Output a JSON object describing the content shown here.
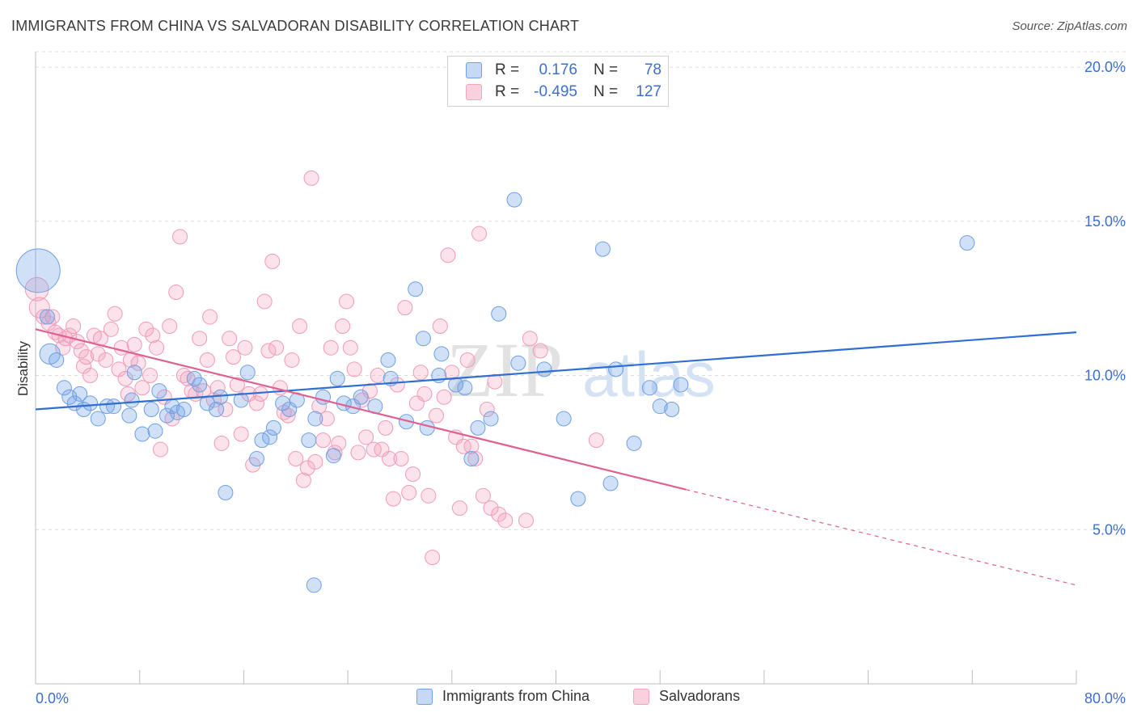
{
  "title": "IMMIGRANTS FROM CHINA VS SALVADORAN DISABILITY CORRELATION CHART",
  "source": "Source: ZipAtlas.com",
  "watermark": {
    "zip": "ZIP",
    "atlas": "atlas"
  },
  "legend_top": {
    "rows": [
      {
        "r_label": "R =",
        "r_value": "0.176",
        "n_label": "N =",
        "n_value": "78",
        "color": "#6fa0e8"
      },
      {
        "r_label": "R =",
        "r_value": "-0.495",
        "n_label": "N =",
        "n_value": "127",
        "color": "#f3a5c0"
      }
    ]
  },
  "legend_bottom": {
    "china": "Immigrants from China",
    "salvadoran": "Salvadorans"
  },
  "chart_data": {
    "type": "scatter",
    "title": "IMMIGRANTS FROM CHINA VS SALVADORAN DISABILITY CORRELATION CHART",
    "xlabel": "",
    "ylabel": "Disability",
    "xlim": [
      0,
      80
    ],
    "ylim": [
      0,
      20.5
    ],
    "x_tick_labels": [
      "0.0%",
      "80.0%"
    ],
    "y_ticks": [
      5,
      10,
      15,
      20
    ],
    "y_tick_labels": [
      "5.0%",
      "10.0%",
      "15.0%",
      "20.0%"
    ],
    "grid": true,
    "colors": {
      "china": "#6fa0e8",
      "china_line": "#2f6fd1",
      "salvadoran": "#f3a5c0",
      "salvadoran_line": "#e0608f"
    },
    "series": [
      {
        "name": "Immigrants from China",
        "trend": {
          "x0": 0,
          "y0": 8.9,
          "x1": 80,
          "y1": 11.4
        },
        "points": [
          [
            0.2,
            13.4,
            3
          ],
          [
            0.9,
            11.9,
            1
          ],
          [
            1.1,
            10.7,
            1.4
          ],
          [
            1.6,
            10.5,
            1
          ],
          [
            2.2,
            9.6,
            1
          ],
          [
            2.6,
            9.3,
            1
          ],
          [
            3.0,
            9.1,
            1
          ],
          [
            3.4,
            9.4,
            1
          ],
          [
            3.7,
            8.9,
            1
          ],
          [
            4.2,
            9.1,
            1
          ],
          [
            4.8,
            8.6,
            1
          ],
          [
            5.5,
            9.0,
            1
          ],
          [
            6.0,
            9.0,
            1
          ],
          [
            7.2,
            8.7,
            1
          ],
          [
            7.4,
            9.2,
            1
          ],
          [
            7.6,
            10.1,
            1
          ],
          [
            8.2,
            8.1,
            1
          ],
          [
            8.9,
            8.9,
            1
          ],
          [
            9.2,
            8.2,
            1
          ],
          [
            9.5,
            9.5,
            1
          ],
          [
            10.1,
            8.7,
            1
          ],
          [
            10.5,
            9.0,
            1
          ],
          [
            10.9,
            8.8,
            1
          ],
          [
            11.4,
            8.9,
            1
          ],
          [
            12.2,
            9.9,
            1
          ],
          [
            12.6,
            9.7,
            1
          ],
          [
            13.2,
            9.1,
            1
          ],
          [
            13.9,
            8.9,
            1
          ],
          [
            14.2,
            9.3,
            1
          ],
          [
            14.6,
            6.2,
            1
          ],
          [
            15.8,
            9.2,
            1
          ],
          [
            16.3,
            10.1,
            1
          ],
          [
            17.0,
            7.3,
            1
          ],
          [
            17.4,
            7.9,
            1
          ],
          [
            18.0,
            8.0,
            1
          ],
          [
            18.3,
            8.3,
            1
          ],
          [
            19.0,
            9.1,
            1
          ],
          [
            19.5,
            8.9,
            1
          ],
          [
            20.1,
            9.2,
            1
          ],
          [
            21.0,
            7.9,
            1
          ],
          [
            21.5,
            8.6,
            1
          ],
          [
            22.1,
            9.3,
            1
          ],
          [
            22.9,
            7.4,
            1
          ],
          [
            23.2,
            9.9,
            1
          ],
          [
            23.7,
            9.1,
            1
          ],
          [
            24.4,
            9.0,
            1
          ],
          [
            25.0,
            9.3,
            1
          ],
          [
            26.1,
            9.0,
            1
          ],
          [
            27.1,
            10.5,
            1
          ],
          [
            27.3,
            9.9,
            1
          ],
          [
            28.5,
            8.5,
            1
          ],
          [
            29.2,
            12.8,
            1
          ],
          [
            29.8,
            11.2,
            1
          ],
          [
            30.1,
            8.3,
            1
          ],
          [
            31.0,
            10.0,
            1
          ],
          [
            31.2,
            10.7,
            1
          ],
          [
            32.3,
            9.7,
            1
          ],
          [
            33.0,
            9.6,
            1
          ],
          [
            33.5,
            7.3,
            1
          ],
          [
            34.0,
            8.3,
            1
          ],
          [
            35.0,
            8.6,
            1
          ],
          [
            35.6,
            12.0,
            1
          ],
          [
            36.8,
            15.7,
            1
          ],
          [
            37.1,
            10.4,
            1
          ],
          [
            38.2,
            19.8,
            1
          ],
          [
            39.1,
            10.2,
            1
          ],
          [
            40.6,
            8.6,
            1
          ],
          [
            41.7,
            6.0,
            1
          ],
          [
            43.6,
            14.1,
            1
          ],
          [
            44.2,
            6.5,
            1
          ],
          [
            44.6,
            10.2,
            1
          ],
          [
            46.0,
            7.8,
            1
          ],
          [
            47.2,
            9.6,
            1
          ],
          [
            48.0,
            9.0,
            1
          ],
          [
            48.9,
            8.9,
            1
          ],
          [
            49.6,
            9.7,
            1
          ],
          [
            71.6,
            14.3,
            1
          ],
          [
            21.4,
            3.2,
            1
          ]
        ]
      },
      {
        "name": "Salvadorans",
        "trend": {
          "x0": 0,
          "y0": 11.5,
          "x1": 50,
          "y1": 6.3,
          "dash_to_x": 80,
          "dash_to_y": 3.2
        },
        "points": [
          [
            0.1,
            12.8,
            1.6
          ],
          [
            0.3,
            12.2,
            1.4
          ],
          [
            0.6,
            11.9,
            1
          ],
          [
            1.0,
            11.7,
            1
          ],
          [
            1.3,
            11.9,
            1
          ],
          [
            1.5,
            11.4,
            1
          ],
          [
            1.8,
            11.3,
            1
          ],
          [
            2.1,
            10.9,
            1
          ],
          [
            2.3,
            11.2,
            1
          ],
          [
            2.6,
            11.3,
            1
          ],
          [
            2.9,
            11.6,
            1
          ],
          [
            3.2,
            11.1,
            1
          ],
          [
            3.5,
            10.8,
            1
          ],
          [
            3.7,
            10.3,
            1
          ],
          [
            3.9,
            10.6,
            1
          ],
          [
            4.2,
            10.0,
            1
          ],
          [
            4.5,
            11.3,
            1
          ],
          [
            4.8,
            10.7,
            1
          ],
          [
            5.0,
            11.2,
            1
          ],
          [
            5.4,
            10.5,
            1
          ],
          [
            5.8,
            11.5,
            1
          ],
          [
            6.1,
            12.0,
            1
          ],
          [
            6.4,
            10.2,
            1
          ],
          [
            6.6,
            10.9,
            1
          ],
          [
            6.9,
            9.9,
            1
          ],
          [
            7.1,
            9.4,
            1
          ],
          [
            7.3,
            10.5,
            1
          ],
          [
            7.6,
            11.0,
            1
          ],
          [
            7.9,
            10.4,
            1
          ],
          [
            8.2,
            9.6,
            1
          ],
          [
            8.5,
            11.5,
            1
          ],
          [
            8.8,
            10.0,
            1
          ],
          [
            9.0,
            11.3,
            1
          ],
          [
            9.3,
            10.9,
            1
          ],
          [
            9.6,
            7.6,
            1
          ],
          [
            9.9,
            9.3,
            1
          ],
          [
            10.3,
            11.6,
            1
          ],
          [
            10.5,
            8.6,
            1
          ],
          [
            10.8,
            12.7,
            1
          ],
          [
            11.1,
            14.5,
            1
          ],
          [
            11.4,
            10.0,
            1
          ],
          [
            11.7,
            9.9,
            1
          ],
          [
            12.0,
            9.5,
            1
          ],
          [
            12.3,
            9.4,
            1
          ],
          [
            12.6,
            11.2,
            1
          ],
          [
            12.9,
            9.5,
            1
          ],
          [
            13.2,
            10.5,
            1
          ],
          [
            13.4,
            11.9,
            1
          ],
          [
            13.7,
            9.2,
            1
          ],
          [
            14.0,
            9.6,
            1
          ],
          [
            14.3,
            7.8,
            1
          ],
          [
            14.6,
            8.9,
            1
          ],
          [
            14.9,
            11.2,
            1
          ],
          [
            15.2,
            10.6,
            1
          ],
          [
            15.5,
            9.7,
            1
          ],
          [
            15.8,
            8.1,
            1
          ],
          [
            16.1,
            10.9,
            1
          ],
          [
            16.4,
            9.4,
            1
          ],
          [
            16.7,
            7.1,
            1
          ],
          [
            17.0,
            9.1,
            1
          ],
          [
            17.3,
            9.4,
            1
          ],
          [
            17.6,
            12.4,
            1
          ],
          [
            17.9,
            10.8,
            1
          ],
          [
            18.2,
            13.7,
            1
          ],
          [
            18.5,
            10.9,
            1
          ],
          [
            18.8,
            9.6,
            1
          ],
          [
            19.1,
            8.8,
            1
          ],
          [
            19.4,
            8.7,
            1
          ],
          [
            19.7,
            10.5,
            1
          ],
          [
            20.0,
            7.3,
            1
          ],
          [
            20.3,
            11.6,
            1
          ],
          [
            20.6,
            6.6,
            1
          ],
          [
            20.9,
            7.0,
            1
          ],
          [
            21.2,
            16.4,
            1
          ],
          [
            21.5,
            7.2,
            1
          ],
          [
            21.8,
            9.0,
            1
          ],
          [
            22.1,
            7.9,
            1
          ],
          [
            22.4,
            8.6,
            1
          ],
          [
            22.7,
            10.9,
            1
          ],
          [
            23.0,
            7.5,
            1
          ],
          [
            23.3,
            7.8,
            1
          ],
          [
            23.6,
            11.6,
            1
          ],
          [
            23.9,
            12.4,
            1
          ],
          [
            24.2,
            10.9,
            1
          ],
          [
            24.5,
            10.2,
            1
          ],
          [
            24.8,
            7.5,
            1
          ],
          [
            25.1,
            9.2,
            1
          ],
          [
            25.4,
            8.0,
            1
          ],
          [
            25.7,
            9.5,
            1
          ],
          [
            26.0,
            7.6,
            1
          ],
          [
            26.3,
            10.0,
            1
          ],
          [
            26.6,
            7.6,
            1
          ],
          [
            26.9,
            8.3,
            1
          ],
          [
            27.2,
            7.3,
            1
          ],
          [
            27.5,
            6.0,
            1
          ],
          [
            27.8,
            9.7,
            1
          ],
          [
            28.1,
            7.3,
            1
          ],
          [
            28.4,
            12.2,
            1
          ],
          [
            28.7,
            6.2,
            1
          ],
          [
            29.0,
            6.8,
            1
          ],
          [
            29.3,
            9.1,
            1
          ],
          [
            29.6,
            10.1,
            1
          ],
          [
            29.9,
            9.4,
            1
          ],
          [
            30.2,
            6.1,
            1
          ],
          [
            30.5,
            4.1,
            1
          ],
          [
            30.8,
            8.7,
            1
          ],
          [
            31.1,
            11.6,
            1
          ],
          [
            31.4,
            9.3,
            1
          ],
          [
            31.7,
            13.9,
            1
          ],
          [
            32.0,
            10.1,
            1
          ],
          [
            32.3,
            8.0,
            1
          ],
          [
            32.6,
            5.7,
            1
          ],
          [
            32.9,
            7.7,
            1
          ],
          [
            33.2,
            10.5,
            1
          ],
          [
            33.5,
            7.7,
            1
          ],
          [
            33.8,
            7.3,
            1
          ],
          [
            34.1,
            14.6,
            1
          ],
          [
            34.4,
            6.1,
            1
          ],
          [
            34.7,
            8.9,
            1
          ],
          [
            35.0,
            5.7,
            1
          ],
          [
            35.3,
            9.8,
            1
          ],
          [
            35.6,
            5.5,
            1
          ],
          [
            36.1,
            5.3,
            1
          ],
          [
            37.7,
            5.3,
            1
          ],
          [
            38.0,
            11.2,
            1
          ],
          [
            38.8,
            10.8,
            1
          ],
          [
            43.1,
            7.9,
            1
          ]
        ]
      }
    ]
  }
}
